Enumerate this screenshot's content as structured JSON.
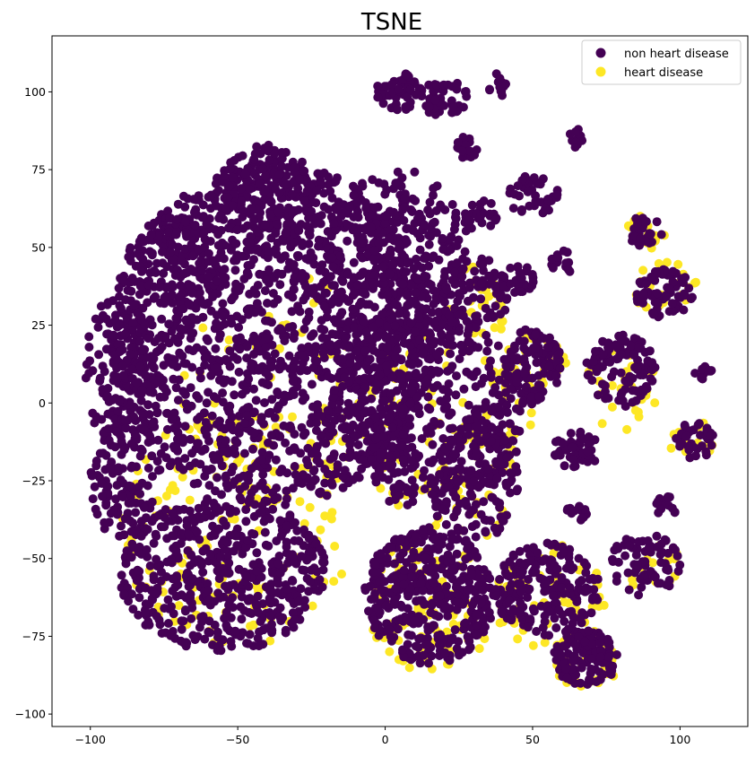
{
  "chart_data": {
    "type": "scatter",
    "title": "TSNE",
    "xlabel": "",
    "ylabel": "",
    "xlim": [
      -113,
      123
    ],
    "ylim": [
      -104,
      118
    ],
    "x_ticks": [
      -100,
      -50,
      0,
      50,
      100
    ],
    "y_ticks": [
      -100,
      -75,
      -50,
      -25,
      0,
      25,
      50,
      75,
      100
    ],
    "x_tick_labels": [
      "−100",
      "−50",
      "0",
      "50",
      "100"
    ],
    "y_tick_labels": [
      "−100",
      "−75",
      "−50",
      "−25",
      "0",
      "25",
      "50",
      "75",
      "100"
    ],
    "grid": false,
    "legend_position": "top-right",
    "series": [
      {
        "name": "non heart disease",
        "color": "#440154",
        "clusters": [
          {
            "cx": -38,
            "cy": 22,
            "rx": 55,
            "ry": 55,
            "n": 1500
          },
          {
            "cx": -40,
            "cy": 65,
            "rx": 18,
            "ry": 18,
            "n": 160
          },
          {
            "cx": -55,
            "cy": -55,
            "rx": 35,
            "ry": 25,
            "n": 500
          },
          {
            "cx": -70,
            "cy": 45,
            "rx": 18,
            "ry": 15,
            "n": 120
          },
          {
            "cx": -90,
            "cy": 10,
            "rx": 12,
            "ry": 25,
            "n": 150
          },
          {
            "cx": -88,
            "cy": -25,
            "rx": 12,
            "ry": 20,
            "n": 120
          },
          {
            "cx": 5,
            "cy": 45,
            "rx": 25,
            "ry": 30,
            "n": 300
          },
          {
            "cx": 15,
            "cy": 0,
            "rx": 35,
            "ry": 30,
            "n": 450
          },
          {
            "cx": 30,
            "cy": 35,
            "rx": 12,
            "ry": 12,
            "n": 80
          },
          {
            "cx": 30,
            "cy": -25,
            "rx": 15,
            "ry": 20,
            "n": 150
          },
          {
            "cx": 15,
            "cy": -62,
            "rx": 22,
            "ry": 22,
            "n": 400
          },
          {
            "cx": 5,
            "cy": 100,
            "rx": 8,
            "ry": 6,
            "n": 60
          },
          {
            "cx": 20,
            "cy": 98,
            "rx": 8,
            "ry": 6,
            "n": 50
          },
          {
            "cx": 28,
            "cy": 82,
            "rx": 4,
            "ry": 4,
            "n": 20
          },
          {
            "cx": 38,
            "cy": 102,
            "rx": 3,
            "ry": 4,
            "n": 15
          },
          {
            "cx": 32,
            "cy": 60,
            "rx": 6,
            "ry": 6,
            "n": 30
          },
          {
            "cx": 50,
            "cy": 67,
            "rx": 9,
            "ry": 7,
            "n": 40
          },
          {
            "cx": 50,
            "cy": 12,
            "rx": 10,
            "ry": 12,
            "n": 110
          },
          {
            "cx": 80,
            "cy": 10,
            "rx": 12,
            "ry": 12,
            "n": 110
          },
          {
            "cx": 65,
            "cy": -15,
            "rx": 9,
            "ry": 6,
            "n": 50
          },
          {
            "cx": 55,
            "cy": -60,
            "rx": 18,
            "ry": 15,
            "n": 200
          },
          {
            "cx": 68,
            "cy": -82,
            "rx": 11,
            "ry": 9,
            "n": 120
          },
          {
            "cx": 88,
            "cy": -52,
            "rx": 12,
            "ry": 10,
            "n": 70
          },
          {
            "cx": 95,
            "cy": 35,
            "rx": 10,
            "ry": 8,
            "n": 70
          },
          {
            "cx": 88,
            "cy": 55,
            "rx": 6,
            "ry": 5,
            "n": 30
          },
          {
            "cx": 65,
            "cy": -35,
            "rx": 4,
            "ry": 3,
            "n": 15
          },
          {
            "cx": 105,
            "cy": -12,
            "rx": 7,
            "ry": 6,
            "n": 40
          },
          {
            "cx": 95,
            "cy": -33,
            "rx": 4,
            "ry": 4,
            "n": 15
          },
          {
            "cx": 108,
            "cy": 10,
            "rx": 3,
            "ry": 3,
            "n": 10
          },
          {
            "cx": 45,
            "cy": 40,
            "rx": 6,
            "ry": 5,
            "n": 25
          },
          {
            "cx": 60,
            "cy": 45,
            "rx": 4,
            "ry": 4,
            "n": 15
          },
          {
            "cx": 65,
            "cy": 85,
            "rx": 3,
            "ry": 3,
            "n": 12
          },
          {
            "cx": 5,
            "cy": -30,
            "rx": 5,
            "ry": 4,
            "n": 15
          },
          {
            "cx": 3,
            "cy": -15,
            "rx": 8,
            "ry": 6,
            "n": 30
          }
        ]
      },
      {
        "name": "heart disease",
        "color": "#fde725",
        "clusters": [
          {
            "cx": -50,
            "cy": -40,
            "rx": 40,
            "ry": 38,
            "n": 140
          },
          {
            "cx": -30,
            "cy": 5,
            "rx": 40,
            "ry": 40,
            "n": 60
          },
          {
            "cx": 15,
            "cy": -65,
            "rx": 22,
            "ry": 22,
            "n": 90
          },
          {
            "cx": 15,
            "cy": -5,
            "rx": 35,
            "ry": 30,
            "n": 60
          },
          {
            "cx": 50,
            "cy": 10,
            "rx": 12,
            "ry": 14,
            "n": 40
          },
          {
            "cx": 80,
            "cy": 5,
            "rx": 14,
            "ry": 14,
            "n": 35
          },
          {
            "cx": 55,
            "cy": -62,
            "rx": 20,
            "ry": 17,
            "n": 50
          },
          {
            "cx": 68,
            "cy": -83,
            "rx": 12,
            "ry": 10,
            "n": 35
          },
          {
            "cx": 95,
            "cy": 37,
            "rx": 11,
            "ry": 9,
            "n": 25
          },
          {
            "cx": 88,
            "cy": 55,
            "rx": 7,
            "ry": 6,
            "n": 15
          },
          {
            "cx": 104,
            "cy": -12,
            "rx": 8,
            "ry": 7,
            "n": 15
          },
          {
            "cx": 30,
            "cy": 30,
            "rx": 12,
            "ry": 14,
            "n": 25
          },
          {
            "cx": 28,
            "cy": -25,
            "rx": 16,
            "ry": 20,
            "n": 25
          },
          {
            "cx": 88,
            "cy": -52,
            "rx": 12,
            "ry": 10,
            "n": 18
          }
        ]
      }
    ]
  }
}
